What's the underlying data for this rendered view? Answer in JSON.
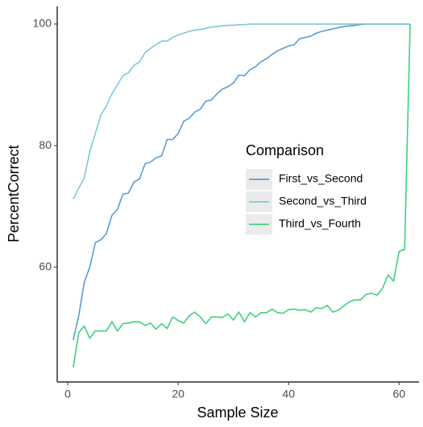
{
  "chart_data": {
    "type": "line",
    "x_label": "Sample Size",
    "y_label": "PercentCorrect",
    "legend_title": "Comparison",
    "legend_position": "right",
    "x": [
      1,
      2,
      3,
      4,
      5,
      6,
      7,
      8,
      9,
      10,
      11,
      12,
      13,
      14,
      15,
      16,
      17,
      18,
      19,
      20,
      21,
      22,
      23,
      24,
      25,
      26,
      27,
      28,
      29,
      30,
      31,
      32,
      33,
      34,
      35,
      36,
      37,
      38,
      39,
      40,
      41,
      42,
      43,
      44,
      45,
      46,
      47,
      48,
      49,
      50,
      51,
      52,
      53,
      54,
      55,
      56,
      57,
      58,
      59,
      60,
      61,
      62
    ],
    "series": [
      {
        "name": "First_vs_Second",
        "color": "#5b9bd5",
        "values": [
          48,
          52,
          57.5,
          60,
          64,
          64.5,
          65.5,
          68.5,
          69.5,
          72,
          72.2,
          74,
          74.5,
          77,
          77.3,
          78,
          78.3,
          81,
          81,
          82,
          84,
          84.5,
          85.5,
          86,
          87.3,
          87.5,
          88.5,
          89.3,
          89.7,
          90.3,
          91.6,
          91.5,
          92.5,
          93,
          93.8,
          94.3,
          95,
          95.6,
          96,
          96.4,
          96.6,
          97.6,
          97.8,
          98,
          98.5,
          98.8,
          99,
          99.2,
          99.4,
          99.6,
          99.7,
          99.8,
          99.9,
          100,
          100,
          100,
          100,
          100,
          100,
          100,
          100,
          100
        ]
      },
      {
        "name": "Second_vs_Third",
        "color": "#7ec8d6",
        "values": [
          71.2,
          73,
          74.7,
          79,
          82,
          85,
          86.5,
          88.5,
          90,
          91.5,
          92,
          93.2,
          93.8,
          95.3,
          96,
          96.6,
          97.2,
          97.2,
          97.8,
          98.2,
          98.5,
          98.8,
          99,
          99.1,
          99.3,
          99.5,
          99.6,
          99.7,
          99.8,
          99.8,
          99.9,
          99.9,
          100,
          100,
          100,
          100,
          100,
          100,
          100,
          100,
          100,
          100,
          100,
          100,
          100,
          100,
          100,
          100,
          100,
          100,
          100,
          100,
          100,
          100,
          100,
          100,
          100,
          100,
          100,
          100,
          100,
          100
        ]
      },
      {
        "name": "Third_vs_Fourth",
        "color": "#3fd07e",
        "values": [
          43.5,
          49.2,
          50.3,
          48.3,
          49.5,
          49.5,
          49.5,
          51,
          49.5,
          50.7,
          50.8,
          51,
          51,
          50.4,
          50.8,
          49.8,
          50.7,
          49.9,
          51.8,
          51.2,
          50.8,
          52,
          52.6,
          51.8,
          50.7,
          51.8,
          51.8,
          51.7,
          52.3,
          51.3,
          52.6,
          51,
          52.5,
          51.8,
          52.5,
          52.5,
          53.1,
          52.5,
          52.4,
          53,
          53.1,
          52.9,
          53,
          52.6,
          53.3,
          53.2,
          53.7,
          52.6,
          52.9,
          53.6,
          54.3,
          54.6,
          54.6,
          55.5,
          55.7,
          55.4,
          56.5,
          58.7,
          57.7,
          62.6,
          62.9,
          100
        ]
      }
    ],
    "xlim": [
      -1.9,
      63.6
    ],
    "ylim": [
      41.1,
      102.9
    ],
    "xticks": [
      0,
      20,
      40,
      60
    ],
    "yticks": [
      60,
      80,
      100
    ],
    "grid": false
  }
}
